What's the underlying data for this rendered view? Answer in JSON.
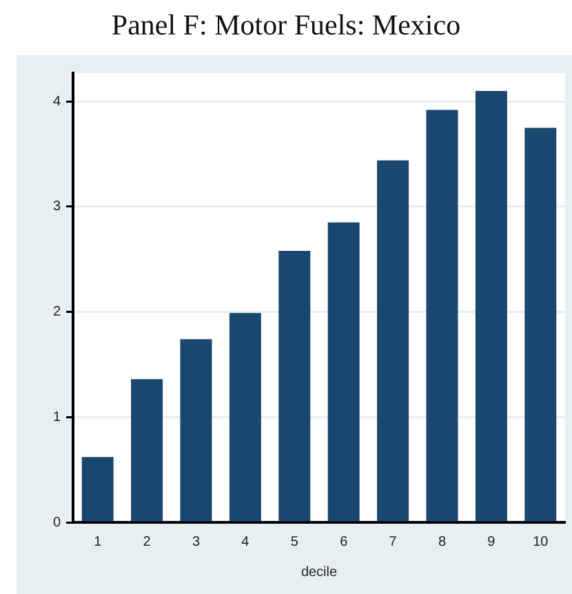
{
  "chart_data": {
    "type": "bar",
    "title": "Panel F: Motor Fuels: Mexico",
    "xlabel": "decile",
    "categories": [
      "1",
      "2",
      "3",
      "4",
      "5",
      "6",
      "7",
      "8",
      "9",
      "10"
    ],
    "values": [
      0.62,
      1.36,
      1.74,
      1.99,
      2.58,
      2.85,
      3.44,
      3.92,
      4.1,
      3.75
    ],
    "color": "#1a476f",
    "ylim": [
      0,
      4.27
    ],
    "yticks": [
      0,
      1,
      2,
      3,
      4
    ],
    "grid": "y"
  }
}
